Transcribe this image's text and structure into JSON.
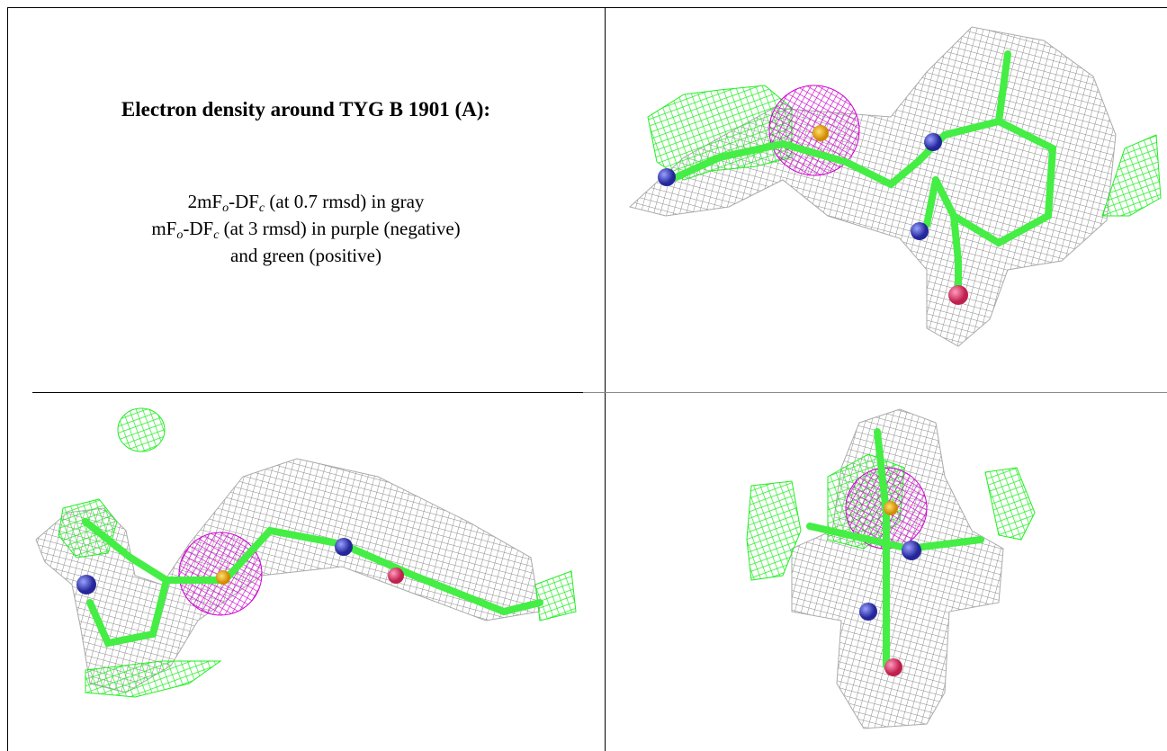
{
  "table": {
    "title": "Electron density around TYG B 1901 (A):",
    "legend_lines": [
      [
        "2mF",
        "o",
        "-DF",
        "c",
        " (at 0.7 rmsd) in gray"
      ],
      [
        "mF",
        "o",
        "-DF",
        "c",
        " (at 3 rmsd) in purple (negative)"
      ],
      [
        "and green (positive)"
      ]
    ]
  }
}
